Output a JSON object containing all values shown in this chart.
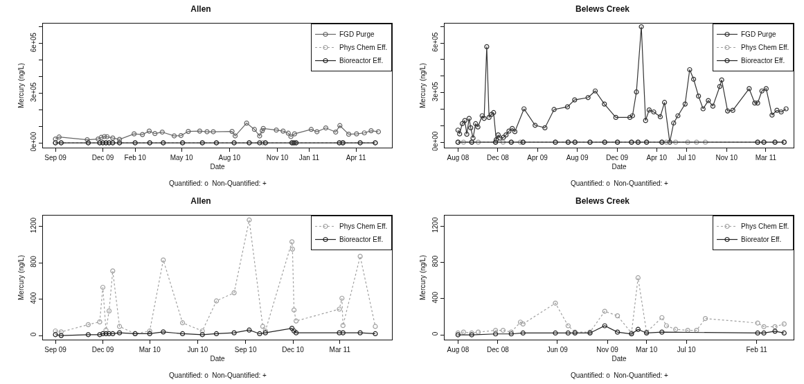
{
  "chart_data": [
    {
      "type": "line",
      "title": "Allen",
      "xlabel": "Date",
      "ylabel": "Mercury (ng/L)",
      "annotations": [
        "Quantified: o  Non-Quantified: +"
      ],
      "legend": "top right",
      "grid": false,
      "marker": "circle",
      "xlim": [
        "2009-08-08",
        "2011-06-09"
      ],
      "ylim": [
        -29000,
        720000
      ],
      "xticks": [
        {
          "value": "2009-09-01",
          "label": "Sep 09"
        },
        {
          "value": "2009-12-01",
          "label": "Dec 09"
        },
        {
          "value": "2010-02-01",
          "label": "Feb 10"
        },
        {
          "value": "2010-05-01",
          "label": "May 10"
        },
        {
          "value": "2010-08-01",
          "label": "Aug 10"
        },
        {
          "value": "2010-11-01",
          "label": "Nov 10"
        },
        {
          "value": "2011-01-01",
          "label": "Jan 11"
        },
        {
          "value": "2011-04-01",
          "label": "Apr 11"
        }
      ],
      "yticks": [
        {
          "value": 0,
          "label": "0e+00"
        },
        {
          "value": 100000,
          "label": null
        },
        {
          "value": 200000,
          "label": null
        },
        {
          "value": 300000,
          "label": "3e+05"
        },
        {
          "value": 400000,
          "label": null
        },
        {
          "value": 500000,
          "label": null
        },
        {
          "value": 600000,
          "label": "6e+05"
        },
        {
          "value": 700000,
          "label": null
        }
      ],
      "series": [
        {
          "name": "FGD Purge",
          "color": "#666666",
          "line_style": "solid",
          "x": [
            "2009-09-01",
            "2009-09-08",
            "2009-11-01",
            "2009-11-22",
            "2009-11-28",
            "2009-12-04",
            "2009-12-09",
            "2009-12-20",
            "2010-01-02",
            "2010-01-30",
            "2010-02-15",
            "2010-02-28",
            "2010-03-11",
            "2010-03-25",
            "2010-04-17",
            "2010-04-30",
            "2010-05-14",
            "2010-06-05",
            "2010-06-19",
            "2010-07-01",
            "2010-08-06",
            "2010-08-12",
            "2010-09-03",
            "2010-09-18",
            "2010-09-28",
            "2010-10-03",
            "2010-10-05",
            "2010-10-30",
            "2010-11-12",
            "2010-11-22",
            "2010-11-27",
            "2010-12-04",
            "2011-01-05",
            "2011-01-16",
            "2011-02-02",
            "2011-02-21",
            "2011-03-01",
            "2011-03-18",
            "2011-04-02",
            "2011-04-17",
            "2011-04-30",
            "2011-05-14"
          ],
          "values": [
            23000,
            35000,
            19000,
            23000,
            33000,
            38000,
            37000,
            29000,
            21000,
            54000,
            50000,
            71000,
            56000,
            65000,
            42000,
            44000,
            69000,
            71000,
            67000,
            67000,
            69000,
            42000,
            119000,
            81000,
            42000,
            73000,
            87000,
            77000,
            71000,
            58000,
            38000,
            54000,
            81000,
            67000,
            90000,
            65000,
            104000,
            52000,
            54000,
            60000,
            73000,
            67000
          ]
        },
        {
          "name": "Phys Chem Eff.",
          "color": "#a0a0a0",
          "line_style": "dotted",
          "x": [
            "2009-09-01",
            "2009-09-12",
            "2009-11-03",
            "2009-11-25",
            "2009-12-01",
            "2009-12-07",
            "2009-12-13",
            "2009-12-20",
            "2010-01-02",
            "2010-02-01",
            "2010-03-01",
            "2010-03-27",
            "2010-05-03",
            "2010-06-10",
            "2010-07-07",
            "2010-08-10",
            "2010-09-08",
            "2010-10-04",
            "2010-10-09",
            "2010-11-29",
            "2010-11-30",
            "2010-12-03",
            "2010-12-07",
            "2011-02-28",
            "2011-03-05",
            "2011-03-07",
            "2011-04-09",
            "2011-05-08"
          ],
          "values": [
            0,
            0,
            0,
            0,
            0,
            0,
            0,
            0,
            0,
            0,
            0,
            0,
            0,
            0,
            0,
            0,
            0,
            0,
            0,
            0,
            0,
            0,
            0,
            0,
            0,
            0,
            0,
            0
          ]
        },
        {
          "name": "Bioreactor Eff.",
          "color": "#222222",
          "line_style": "solid",
          "x": [
            "2009-09-01",
            "2009-09-12",
            "2009-11-03",
            "2009-11-25",
            "2009-12-01",
            "2009-12-07",
            "2009-12-13",
            "2009-12-20",
            "2010-01-02",
            "2010-02-01",
            "2010-03-01",
            "2010-03-27",
            "2010-05-03",
            "2010-06-10",
            "2010-07-07",
            "2010-08-10",
            "2010-09-08",
            "2010-09-28",
            "2010-10-09",
            "2010-11-29",
            "2010-12-03",
            "2010-12-07",
            "2011-02-28",
            "2011-03-07",
            "2011-04-09",
            "2011-05-08"
          ],
          "values": [
            0,
            0,
            0,
            0,
            0,
            0,
            0,
            0,
            0,
            0,
            0,
            0,
            0,
            0,
            0,
            0,
            0,
            0,
            0,
            0,
            0,
            0,
            0,
            0,
            0,
            0
          ]
        }
      ]
    },
    {
      "type": "line",
      "title": "Belews Creek",
      "xlabel": "Date",
      "ylabel": "Mercury (ng/L)",
      "annotations": [
        "Quantified: o  Non-Quantified: +"
      ],
      "legend": "top right",
      "grid": false,
      "marker": "circle",
      "xlim": [
        "2008-06-21",
        "2011-05-25"
      ],
      "ylim": [
        -33000,
        718000
      ],
      "xticks": [
        {
          "value": "2008-08-01",
          "label": "Aug 08"
        },
        {
          "value": "2008-12-01",
          "label": "Dec 08"
        },
        {
          "value": "2009-04-01",
          "label": "Apr 09"
        },
        {
          "value": "2009-08-01",
          "label": "Aug 09"
        },
        {
          "value": "2009-12-01",
          "label": "Dec 09"
        },
        {
          "value": "2010-04-01",
          "label": "Apr 10"
        },
        {
          "value": "2010-07-01",
          "label": "Jul 10"
        },
        {
          "value": "2010-11-01",
          "label": "Nov 10"
        },
        {
          "value": "2011-03-01",
          "label": "Mar 11"
        }
      ],
      "yticks": [
        {
          "value": 0,
          "label": "0e+00"
        },
        {
          "value": 100000,
          "label": null
        },
        {
          "value": 200000,
          "label": null
        },
        {
          "value": 300000,
          "label": "3e+05"
        },
        {
          "value": 400000,
          "label": null
        },
        {
          "value": 500000,
          "label": null
        },
        {
          "value": 600000,
          "label": "6e+05"
        },
        {
          "value": 700000,
          "label": null
        }
      ],
      "series": [
        {
          "name": "FGD Purge",
          "color": "#333333",
          "line_style": "solid",
          "x": [
            "2008-08-01",
            "2008-08-06",
            "2008-08-14",
            "2008-08-22",
            "2008-08-28",
            "2008-09-04",
            "2008-09-09",
            "2008-09-16",
            "2008-09-24",
            "2008-10-01",
            "2008-10-14",
            "2008-10-20",
            "2008-10-28",
            "2008-11-04",
            "2008-11-12",
            "2008-11-18",
            "2008-11-26",
            "2008-12-02",
            "2008-12-08",
            "2008-12-18",
            "2008-12-26",
            "2009-01-04",
            "2009-01-14",
            "2009-01-22",
            "2009-02-19",
            "2009-03-25",
            "2009-04-24",
            "2009-05-22",
            "2009-07-02",
            "2009-07-24",
            "2009-09-03",
            "2009-09-25",
            "2009-10-23",
            "2009-11-27",
            "2010-01-09",
            "2010-01-17",
            "2010-01-29",
            "2010-02-13",
            "2010-02-26",
            "2010-03-09",
            "2010-03-23",
            "2010-04-12",
            "2010-04-25",
            "2010-05-11",
            "2010-05-23",
            "2010-06-05",
            "2010-06-27",
            "2010-07-11",
            "2010-07-23",
            "2010-08-07",
            "2010-08-21",
            "2010-09-06",
            "2010-09-20",
            "2010-10-11",
            "2010-10-17",
            "2010-11-04",
            "2010-11-20",
            "2011-01-09",
            "2011-01-26",
            "2011-02-04",
            "2011-02-17",
            "2011-03-02",
            "2011-03-20",
            "2011-04-04",
            "2011-04-17",
            "2011-05-02"
          ],
          "values": [
            73000,
            50000,
            112000,
            131000,
            48000,
            144000,
            87000,
            25000,
            112000,
            92000,
            160000,
            144000,
            578000,
            150000,
            169000,
            179000,
            15000,
            44000,
            25000,
            29000,
            44000,
            67000,
            83000,
            64000,
            202000,
            102000,
            87000,
            198000,
            214000,
            256000,
            270000,
            310000,
            231000,
            150000,
            150000,
            160000,
            304000,
            699000,
            131000,
            195000,
            183000,
            154000,
            241000,
            0,
            116000,
            160000,
            231000,
            439000,
            381000,
            279000,
            202000,
            252000,
            218000,
            337000,
            377000,
            189000,
            193000,
            324000,
            237000,
            237000,
            310000,
            324000,
            164000,
            193000,
            183000,
            202000
          ]
        },
        {
          "name": "Phys Chem Eff.",
          "color": "#a0a0a0",
          "line_style": "dotted",
          "x": [
            "2008-08-01",
            "2008-08-18",
            "2008-09-12",
            "2008-10-02",
            "2008-11-24",
            "2008-12-17",
            "2009-01-11",
            "2009-02-08",
            "2009-02-16",
            "2009-05-26",
            "2009-07-04",
            "2009-07-25",
            "2009-09-09",
            "2009-10-24",
            "2009-12-02",
            "2010-01-14",
            "2010-02-03",
            "2010-03-01",
            "2010-04-17",
            "2010-05-01",
            "2010-05-29",
            "2010-07-05",
            "2010-08-01",
            "2010-08-28",
            "2011-02-04",
            "2011-02-23",
            "2011-03-29",
            "2011-04-26"
          ],
          "values": [
            0,
            0,
            0,
            0,
            0,
            0,
            0,
            0,
            0,
            0,
            0,
            0,
            0,
            0,
            0,
            0,
            0,
            0,
            0,
            0,
            0,
            0,
            0,
            0,
            0,
            0,
            0,
            0
          ]
        },
        {
          "name": "Bioreactor Eff.",
          "color": "#222222",
          "line_style": "solid",
          "x": [
            "2008-08-01",
            "2008-09-12",
            "2008-11-24",
            "2009-01-11",
            "2009-02-16",
            "2009-05-26",
            "2009-07-04",
            "2009-07-25",
            "2009-09-09",
            "2009-10-24",
            "2009-12-02",
            "2010-01-14",
            "2010-02-03",
            "2010-03-01",
            "2010-04-17",
            "2011-02-04",
            "2011-02-23",
            "2011-03-29",
            "2011-04-26"
          ],
          "values": [
            0,
            0,
            0,
            0,
            0,
            0,
            0,
            0,
            0,
            0,
            0,
            0,
            0,
            0,
            0,
            0,
            0,
            0,
            0
          ]
        }
      ]
    },
    {
      "type": "line",
      "title": "Allen",
      "xlabel": "Date",
      "ylabel": "Mercury (ng/L)",
      "annotations": [
        "Quantified: o  Non-Quantified: +"
      ],
      "legend": "top right",
      "grid": false,
      "marker": "circle",
      "xlim": [
        "2009-08-08",
        "2011-06-09"
      ],
      "ylim": [
        -45,
        1318
      ],
      "xticks": [
        {
          "value": "2009-09-01",
          "label": "Sep 09"
        },
        {
          "value": "2009-12-01",
          "label": "Dec 09"
        },
        {
          "value": "2010-03-01",
          "label": "Mar 10"
        },
        {
          "value": "2010-06-01",
          "label": "Jun 10"
        },
        {
          "value": "2010-09-01",
          "label": "Sep 10"
        },
        {
          "value": "2010-12-01",
          "label": "Dec 10"
        },
        {
          "value": "2011-03-01",
          "label": "Mar 11"
        }
      ],
      "yticks": [
        0,
        400,
        800,
        1200
      ],
      "series": [
        {
          "name": "Phys Chem Eff.",
          "color": "#a0a0a0",
          "line_style": "dotted",
          "x": [
            "2009-09-01",
            "2009-09-12",
            "2009-11-03",
            "2009-11-25",
            "2009-12-01",
            "2009-12-07",
            "2009-12-13",
            "2009-12-20",
            "2010-01-02",
            "2010-02-01",
            "2010-03-01",
            "2010-03-27",
            "2010-05-03",
            "2010-06-10",
            "2010-07-07",
            "2010-08-10",
            "2010-09-08",
            "2010-10-04",
            "2010-10-09",
            "2010-11-29",
            "2010-11-30",
            "2010-12-03",
            "2010-12-07",
            "2011-02-28",
            "2011-03-05",
            "2011-03-07",
            "2011-04-09",
            "2011-05-08"
          ],
          "values": [
            50,
            40,
            120,
            150,
            530,
            60,
            270,
            710,
            100,
            20,
            50,
            830,
            140,
            50,
            380,
            470,
            1270,
            100,
            50,
            1030,
            950,
            280,
            160,
            290,
            410,
            110,
            870,
            100
          ]
        },
        {
          "name": "Bioreactor Eff.",
          "color": "#222222",
          "line_style": "solid",
          "x": [
            "2009-09-01",
            "2009-09-12",
            "2009-11-03",
            "2009-11-25",
            "2009-12-01",
            "2009-12-07",
            "2009-12-13",
            "2009-12-20",
            "2010-01-02",
            "2010-02-01",
            "2010-03-01",
            "2010-03-27",
            "2010-05-03",
            "2010-06-10",
            "2010-07-07",
            "2010-08-10",
            "2010-09-08",
            "2010-09-28",
            "2010-10-09",
            "2010-11-29",
            "2010-12-03",
            "2010-12-07",
            "2011-02-28",
            "2011-03-07",
            "2011-04-09",
            "2011-05-08"
          ],
          "values": [
            10,
            0,
            10,
            10,
            20,
            20,
            20,
            20,
            30,
            20,
            20,
            40,
            20,
            10,
            20,
            30,
            60,
            20,
            30,
            80,
            50,
            30,
            30,
            30,
            30,
            20
          ]
        }
      ]
    },
    {
      "type": "line",
      "title": "Belews Creek",
      "xlabel": "Date",
      "ylabel": "Mercury (ng/L)",
      "annotations": [
        "Quantified: o  Non-Quantified: +"
      ],
      "legend": "top right",
      "grid": false,
      "marker": "circle",
      "xlim": [
        "2008-06-21",
        "2011-05-25"
      ],
      "ylim": [
        -53,
        1316
      ],
      "xticks": [
        {
          "value": "2008-08-01",
          "label": "Aug 08"
        },
        {
          "value": "2008-12-01",
          "label": "Dec 08"
        },
        {
          "value": "2009-06-01",
          "label": "Jun 09"
        },
        {
          "value": "2009-11-01",
          "label": "Nov 09"
        },
        {
          "value": "2010-03-01",
          "label": "Mar 10"
        },
        {
          "value": "2010-07-01",
          "label": "Jul 10"
        },
        {
          "value": "2011-02-01",
          "label": "Feb 11"
        }
      ],
      "yticks": [
        0,
        400,
        800,
        1200
      ],
      "series": [
        {
          "name": "Phys Chem Eff.",
          "color": "#a0a0a0",
          "line_style": "dotted",
          "x": [
            "2008-08-01",
            "2008-08-18",
            "2008-09-12",
            "2008-10-02",
            "2008-11-24",
            "2008-12-17",
            "2009-01-11",
            "2009-02-08",
            "2009-02-16",
            "2009-05-26",
            "2009-07-04",
            "2009-07-25",
            "2009-09-09",
            "2009-10-24",
            "2009-12-02",
            "2010-01-14",
            "2010-02-03",
            "2010-03-01",
            "2010-04-17",
            "2010-05-01",
            "2010-05-29",
            "2010-07-05",
            "2010-08-01",
            "2010-08-28",
            "2011-02-04",
            "2011-02-23",
            "2011-03-29",
            "2011-04-26"
          ],
          "values": [
            20,
            30,
            20,
            30,
            50,
            50,
            30,
            140,
            120,
            350,
            100,
            30,
            30,
            260,
            210,
            20,
            630,
            30,
            190,
            100,
            60,
            50,
            50,
            180,
            130,
            90,
            90,
            120
          ]
        },
        {
          "name": "Bioreator Eff.",
          "color": "#222222",
          "line_style": "solid",
          "x": [
            "2008-08-01",
            "2008-09-12",
            "2008-11-24",
            "2009-01-11",
            "2009-02-16",
            "2009-05-26",
            "2009-07-04",
            "2009-07-25",
            "2009-09-09",
            "2009-10-24",
            "2009-12-02",
            "2010-01-14",
            "2010-02-03",
            "2010-03-01",
            "2010-04-17",
            "2011-02-04",
            "2011-02-23",
            "2011-03-29",
            "2011-04-26"
          ],
          "values": [
            0,
            0,
            10,
            10,
            20,
            20,
            20,
            20,
            20,
            100,
            30,
            10,
            60,
            20,
            30,
            20,
            20,
            40,
            20
          ]
        }
      ]
    }
  ]
}
